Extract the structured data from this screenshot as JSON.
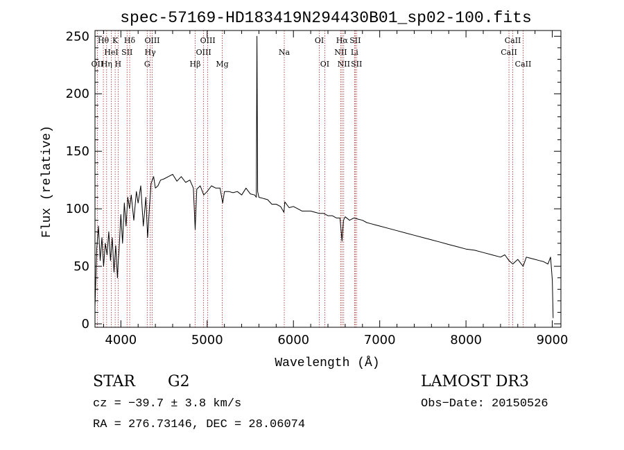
{
  "chart_data": {
    "type": "line",
    "title": "spec-57169-HD183419N294430B01_sp02-100.fits",
    "xlabel": "Wavelength (Å)",
    "ylabel": "Flux (relative)",
    "xlim": [
      3700,
      9100
    ],
    "ylim": [
      -3,
      255
    ],
    "xticks": [
      4000,
      5000,
      6000,
      7000,
      8000,
      9000
    ],
    "yticks": [
      0,
      50,
      100,
      150,
      200,
      250
    ],
    "grid": false,
    "series": [
      {
        "name": "flux",
        "x": [
          3700,
          3720,
          3740,
          3760,
          3780,
          3800,
          3820,
          3840,
          3860,
          3880,
          3900,
          3920,
          3940,
          3960,
          3970,
          3980,
          4000,
          4020,
          4040,
          4060,
          4080,
          4100,
          4120,
          4150,
          4180,
          4200,
          4230,
          4260,
          4290,
          4310,
          4330,
          4350,
          4380,
          4400,
          4430,
          4460,
          4500,
          4550,
          4600,
          4650,
          4700,
          4750,
          4800,
          4840,
          4861,
          4880,
          4920,
          4960,
          5000,
          5050,
          5100,
          5150,
          5180,
          5200,
          5250,
          5300,
          5350,
          5400,
          5450,
          5500,
          5550,
          5570,
          5577,
          5585,
          5600,
          5650,
          5700,
          5750,
          5800,
          5850,
          5890,
          5900,
          5950,
          6000,
          6050,
          6100,
          6150,
          6200,
          6250,
          6300,
          6350,
          6400,
          6450,
          6500,
          6540,
          6563,
          6580,
          6600,
          6650,
          6700,
          6750,
          6800,
          6850,
          6900,
          6950,
          7000,
          7100,
          7200,
          7300,
          7400,
          7500,
          7600,
          7700,
          7800,
          7900,
          8000,
          8100,
          8200,
          8300,
          8400,
          8450,
          8498,
          8542,
          8600,
          8662,
          8700,
          8750,
          8800,
          8850,
          8900,
          8950,
          8980,
          9000,
          9010
        ],
        "values": [
          15,
          65,
          85,
          55,
          75,
          50,
          70,
          60,
          80,
          55,
          75,
          45,
          68,
          40,
          55,
          65,
          95,
          70,
          105,
          85,
          110,
          100,
          112,
          90,
          115,
          105,
          120,
          85,
          110,
          75,
          100,
          122,
          128,
          118,
          120,
          125,
          126,
          128,
          130,
          124,
          128,
          123,
          125,
          118,
          82,
          117,
          120,
          112,
          115,
          120,
          118,
          118,
          105,
          115,
          115,
          114,
          115,
          112,
          118,
          113,
          112,
          110,
          250,
          115,
          110,
          109,
          108,
          104,
          104,
          102,
          97,
          106,
          101,
          102,
          100,
          98,
          98,
          98,
          97,
          96,
          96,
          94,
          94,
          92,
          92,
          72,
          90,
          93,
          90,
          92,
          91,
          90,
          88,
          87,
          86,
          85,
          83,
          81,
          79,
          77,
          75,
          73,
          71,
          69,
          67,
          65,
          64,
          62,
          60,
          58,
          60,
          55,
          52,
          56,
          50,
          58,
          57,
          56,
          55,
          54,
          52,
          58,
          38,
          5
        ]
      }
    ],
    "lines": [
      {
        "name": "OII",
        "wl": 3727,
        "row": 2
      },
      {
        "name": "Hθ",
        "wl": 3797,
        "row": 0
      },
      {
        "name": "Hη",
        "wl": 3835,
        "row": 2
      },
      {
        "name": "HeI",
        "wl": 3889,
        "row": 1
      },
      {
        "name": "K",
        "wl": 3934,
        "row": 0
      },
      {
        "name": "H",
        "wl": 3968,
        "row": 2
      },
      {
        "name": "SII",
        "wl": 4072,
        "row": 1
      },
      {
        "name": "Hδ",
        "wl": 4102,
        "row": 0
      },
      {
        "name": "G",
        "wl": 4305,
        "row": 2
      },
      {
        "name": "Hγ",
        "wl": 4340,
        "row": 1
      },
      {
        "name": "OIII",
        "wl": 4363,
        "row": 0
      },
      {
        "name": "Hβ",
        "wl": 4861,
        "row": 2
      },
      {
        "name": "OIII",
        "wl": 4959,
        "row": 1
      },
      {
        "name": "OIII",
        "wl": 5007,
        "row": 0
      },
      {
        "name": "Mg",
        "wl": 5175,
        "row": 2
      },
      {
        "name": "Na",
        "wl": 5894,
        "row": 1
      },
      {
        "name": "OI",
        "wl": 6300,
        "row": 0
      },
      {
        "name": "OI",
        "wl": 6363,
        "row": 2
      },
      {
        "name": "NII",
        "wl": 6548,
        "row": 1
      },
      {
        "name": "Hα",
        "wl": 6563,
        "row": 0
      },
      {
        "name": "NII",
        "wl": 6583,
        "row": 2
      },
      {
        "name": "Li",
        "wl": 6708,
        "row": 1
      },
      {
        "name": "SII",
        "wl": 6716,
        "row": 0
      },
      {
        "name": "SII",
        "wl": 6731,
        "row": 2
      },
      {
        "name": "CaII",
        "wl": 8498,
        "row": 1
      },
      {
        "name": "CaII",
        "wl": 8542,
        "row": 0
      },
      {
        "name": "CaII",
        "wl": 8662,
        "row": 2
      }
    ]
  },
  "info": {
    "class_label": "STAR",
    "subclass": "G2",
    "survey": "LAMOST DR3",
    "cz": "cz = −39.7 ± 3.8 km/s",
    "obs_date": "Obs−Date: 20150526",
    "coords": "RA = 276.73146, DEC =  28.06074"
  },
  "colors": {
    "line_marker": "#b22222",
    "spectrum": "#000000",
    "axes": "#000000"
  }
}
